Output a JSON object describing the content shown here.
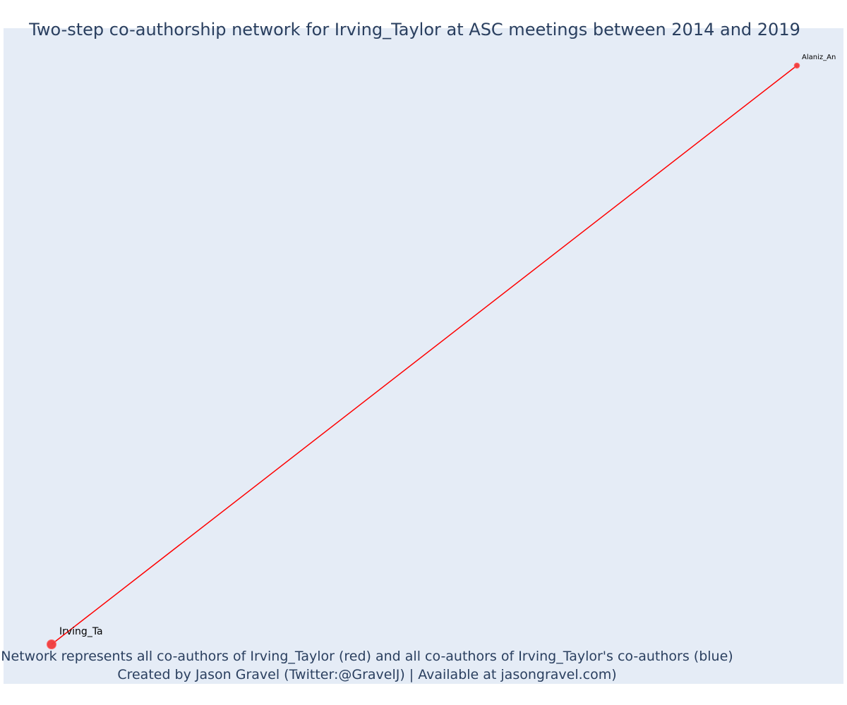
{
  "title": "Two-step co-authorship network for Irving_Taylor at ASC meetings between 2014 and 2019",
  "caption": {
    "line1": "Network represents all co-authors of Irving_Taylor (red) and all co-authors of Irving_Taylor's co-authors (blue)",
    "line2": "Created by Jason Gravel (Twitter:@GravelJ) | Available at jasongravel.com)"
  },
  "colors": {
    "background": "#e5ecf6",
    "edge": "#ff0000",
    "node_first_degree": "#ef3b3b",
    "text": "#2a3f5f"
  },
  "network": {
    "nodes": [
      {
        "id": "Irving_Taylor",
        "label": "Irving_Ta",
        "group": "focal"
      },
      {
        "id": "Alaniz_An",
        "label": "Alaniz_An",
        "group": "coauthor"
      }
    ],
    "edges": [
      {
        "source": "Irving_Taylor",
        "target": "Alaniz_An"
      }
    ]
  }
}
